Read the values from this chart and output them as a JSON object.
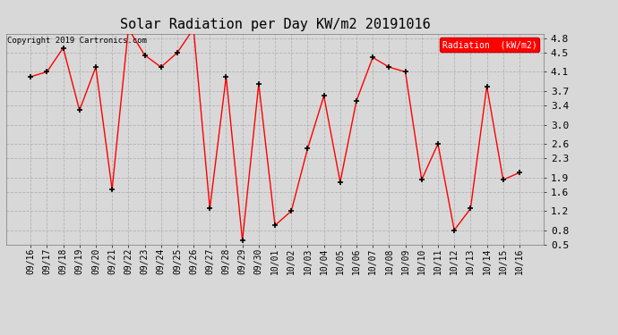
{
  "title": "Solar Radiation per Day KW/m2 20191016",
  "copyright_text": "Copyright 2019 Cartronics.com",
  "legend_label": "Radiation  (kW/m2)",
  "line_color": "#ff0000",
  "marker_color": "#000000",
  "bg_color": "#d8d8d8",
  "grid_color": "#b0b0b0",
  "dates": [
    "09/16",
    "09/17",
    "09/18",
    "09/19",
    "09/20",
    "09/21",
    "09/22",
    "09/23",
    "09/24",
    "09/25",
    "09/26",
    "09/27",
    "09/28",
    "09/29",
    "09/30",
    "10/01",
    "10/02",
    "10/03",
    "10/04",
    "10/05",
    "10/06",
    "10/07",
    "10/08",
    "10/09",
    "10/10",
    "10/11",
    "10/12",
    "10/13",
    "10/14",
    "10/15",
    "10/16"
  ],
  "values": [
    4.0,
    4.1,
    4.6,
    3.3,
    4.2,
    1.65,
    5.0,
    4.45,
    4.2,
    4.5,
    5.0,
    1.25,
    4.0,
    0.58,
    3.85,
    0.9,
    1.2,
    2.5,
    3.6,
    1.8,
    3.5,
    4.4,
    4.2,
    4.1,
    1.85,
    2.6,
    0.8,
    1.25,
    3.8,
    1.85,
    2.0
  ],
  "ylim_min": 0.5,
  "ylim_max": 4.9,
  "yticks": [
    0.5,
    0.8,
    1.2,
    1.6,
    1.9,
    2.3,
    2.6,
    3.0,
    3.4,
    3.7,
    4.1,
    4.5,
    4.8
  ],
  "title_fontsize": 11,
  "tick_fontsize": 7,
  "figwidth": 6.9,
  "figheight": 3.75,
  "dpi": 100
}
